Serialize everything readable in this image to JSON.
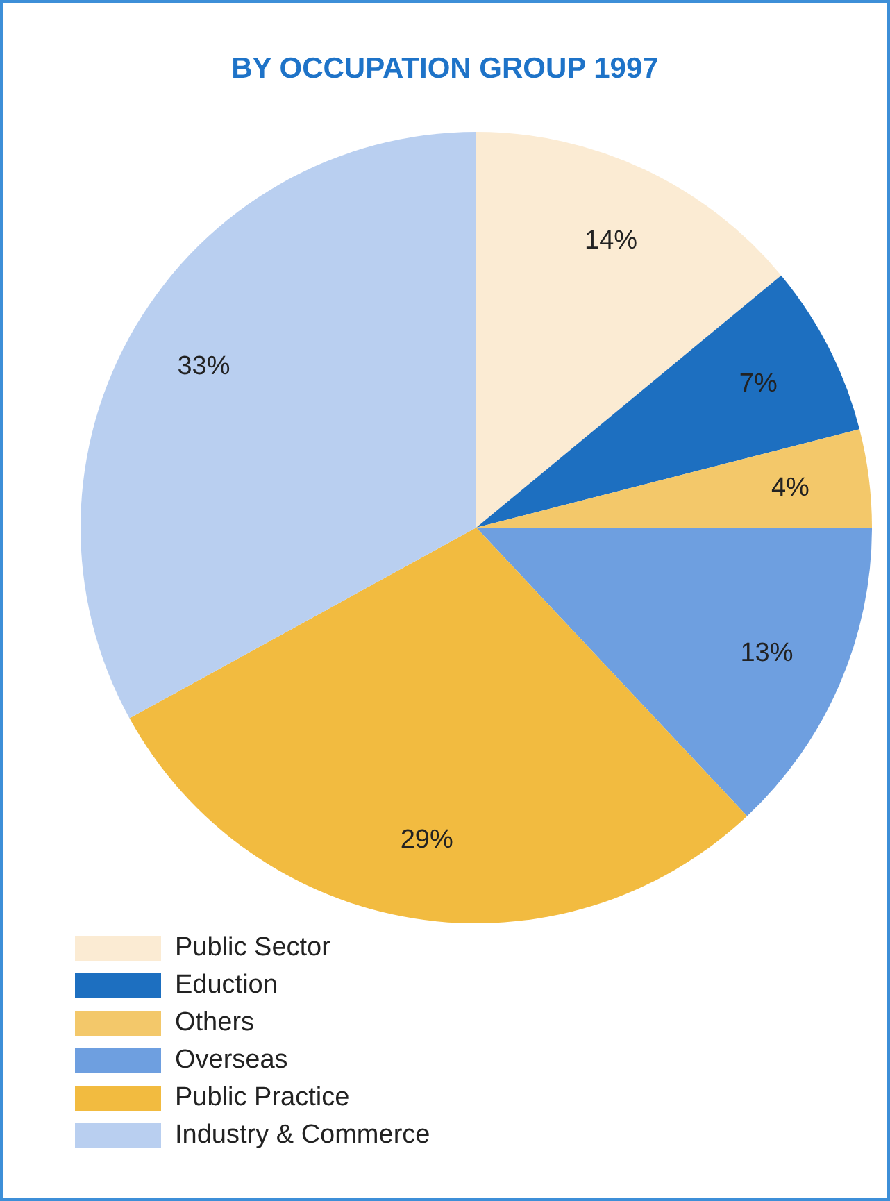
{
  "chart_data": {
    "type": "pie",
    "title": "BY OCCUPATION GROUP 1997",
    "categories": [
      "Public Sector",
      "Eduction",
      "Others",
      "Overseas",
      "Public Practice",
      "Industry & Commerce"
    ],
    "values": [
      14,
      7,
      4,
      13,
      29,
      33
    ],
    "value_labels": [
      "14%",
      "7%",
      "4%",
      "13%",
      "29%",
      "33%"
    ],
    "colors": [
      "#fbebd3",
      "#1d6fc0",
      "#f3c86a",
      "#6e9fe0",
      "#f2bb40",
      "#b9cff0"
    ],
    "legend": "bottom left"
  }
}
